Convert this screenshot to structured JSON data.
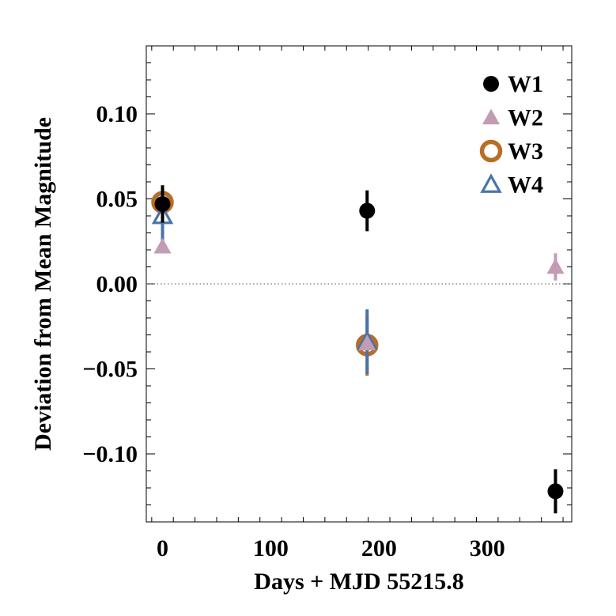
{
  "chart_data": {
    "type": "scatter",
    "title": "",
    "xlabel": "Days + MJD 55215.8",
    "ylabel": "Deviation from Mean Magnitude",
    "xlim": [
      -15,
      378
    ],
    "ylim": [
      -0.14,
      0.14
    ],
    "xticks": [
      0,
      100,
      200,
      300
    ],
    "xtick_labels": [
      "0",
      "100",
      "200",
      "300"
    ],
    "yticks": [
      0.1,
      0.05,
      0.0,
      -0.05,
      -0.1
    ],
    "ytick_labels": [
      "0.10",
      "0.05",
      "0.00",
      "−0.05",
      "−0.10"
    ],
    "reference_line": 0.0,
    "legend_position": "top-right",
    "series": [
      {
        "name": "W1",
        "marker": "filled-circle",
        "color": "#000000",
        "points": [
          {
            "x": 0,
            "y": 0.047,
            "err": 0.011
          },
          {
            "x": 189,
            "y": 0.043,
            "err": 0.012
          },
          {
            "x": 363,
            "y": -0.122,
            "err": 0.013
          }
        ]
      },
      {
        "name": "W2",
        "marker": "filled-triangle",
        "color": "#c49bb5",
        "points": [
          {
            "x": 0,
            "y": 0.022,
            "err": 0.003
          },
          {
            "x": 189,
            "y": -0.035,
            "err": 0.003
          },
          {
            "x": 363,
            "y": 0.01,
            "err": 0.008
          }
        ]
      },
      {
        "name": "W3",
        "marker": "open-circle",
        "color": "#b86e25",
        "points": [
          {
            "x": 0,
            "y": 0.048,
            "err": 0.008
          },
          {
            "x": 189,
            "y": -0.036,
            "err": 0.018
          }
        ]
      },
      {
        "name": "W4",
        "marker": "open-triangle",
        "color": "#4a74a8",
        "points": [
          {
            "x": 0,
            "y": 0.04,
            "err": 0.015
          },
          {
            "x": 189,
            "y": -0.034,
            "err": 0.019
          }
        ]
      }
    ]
  }
}
